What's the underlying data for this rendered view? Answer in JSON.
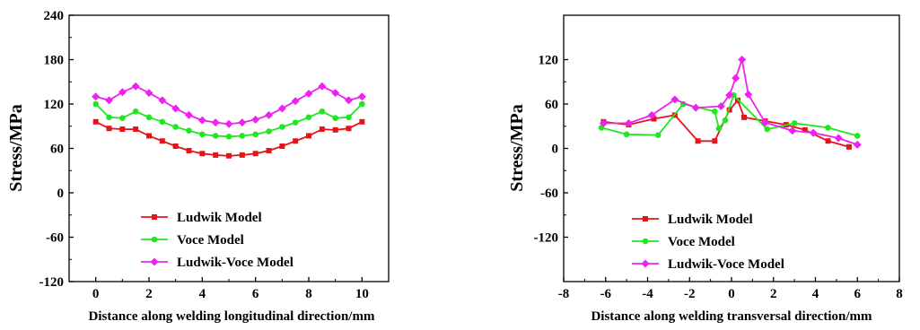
{
  "chart_data": [
    {
      "type": "line",
      "xlabel": "Distance along welding longitudinal direction/mm",
      "ylabel": "Stress/MPa",
      "xlim": [
        -1,
        11
      ],
      "ylim": [
        -120,
        240
      ],
      "xticks": [
        0,
        2,
        4,
        6,
        8,
        10
      ],
      "yticks": [
        -120,
        -60,
        0,
        60,
        120,
        180,
        240
      ],
      "grid": false,
      "legend_position": "bottom-center",
      "series": [
        {
          "name": "Ludwik Model",
          "color": "#e8131a",
          "marker": "square",
          "x": [
            0,
            0.5,
            1,
            1.5,
            2,
            2.5,
            3,
            3.5,
            4,
            4.5,
            5,
            5.5,
            6,
            6.5,
            7,
            7.5,
            8,
            8.5,
            9,
            9.5,
            10
          ],
          "y": [
            96,
            87,
            86,
            86,
            77,
            70,
            63,
            57,
            53,
            51,
            50,
            51,
            53,
            57,
            63,
            70,
            77,
            86,
            85,
            87,
            96
          ]
        },
        {
          "name": "Voce Model",
          "color": "#22e622",
          "marker": "circle",
          "x": [
            0,
            0.5,
            1,
            1.5,
            2,
            2.5,
            3,
            3.5,
            4,
            4.5,
            5,
            5.5,
            6,
            6.5,
            7,
            7.5,
            8,
            8.5,
            9,
            9.5,
            10
          ],
          "y": [
            120,
            102,
            101,
            110,
            102,
            96,
            89,
            84,
            79,
            77,
            76,
            77,
            79,
            83,
            89,
            95,
            102,
            110,
            101,
            102,
            120
          ]
        },
        {
          "name": "Ludwik-Voce Model",
          "color": "#ee22ee",
          "marker": "diamond",
          "x": [
            0,
            0.5,
            1,
            1.5,
            2,
            2.5,
            3,
            3.5,
            4,
            4.5,
            5,
            5.5,
            6,
            6.5,
            7,
            7.5,
            8,
            8.5,
            9,
            9.5,
            10
          ],
          "y": [
            130,
            125,
            136,
            144,
            135,
            125,
            114,
            105,
            98,
            95,
            93,
            95,
            99,
            105,
            114,
            124,
            134,
            144,
            135,
            125,
            130
          ]
        }
      ]
    },
    {
      "type": "line",
      "xlabel": "Distance along welding transversal direction/mm",
      "ylabel": "Stress/MPa",
      "xlim": [
        -8,
        8
      ],
      "ylim": [
        -180,
        180
      ],
      "xticks": [
        -8,
        -6,
        -4,
        -2,
        0,
        2,
        4,
        6,
        8
      ],
      "yticks": [
        -120,
        -60,
        0,
        60,
        120
      ],
      "grid": false,
      "legend_position": "bottom-center",
      "series": [
        {
          "name": "Ludwik Model",
          "color": "#e8131a",
          "marker": "square",
          "x": [
            -6.1,
            -4.9,
            -3.7,
            -2.7,
            -1.6,
            -0.8,
            -0.1,
            0.3,
            0.6,
            1.6,
            2.6,
            3.5,
            4.6,
            5.6
          ],
          "y": [
            36,
            32,
            40,
            45,
            10,
            10,
            52,
            65,
            42,
            37,
            32,
            25,
            10,
            2
          ]
        },
        {
          "name": "Voce Model",
          "color": "#22e622",
          "marker": "circle",
          "x": [
            -6.2,
            -5.0,
            -3.5,
            -2.3,
            -0.8,
            -0.6,
            -0.3,
            0.1,
            1.7,
            3.0,
            4.6,
            6.0
          ],
          "y": [
            28,
            19,
            18,
            60,
            50,
            27,
            38,
            72,
            26,
            34,
            28,
            17
          ]
        },
        {
          "name": "Ludwik-Voce Model",
          "color": "#ee22ee",
          "marker": "diamond",
          "x": [
            -6.1,
            -4.9,
            -3.8,
            -2.7,
            -1.7,
            -0.5,
            -0.1,
            0.2,
            0.5,
            0.8,
            1.6,
            2.9,
            3.9,
            5.1,
            6.0
          ],
          "y": [
            34,
            34,
            45,
            66,
            55,
            57,
            72,
            95,
            120,
            73,
            35,
            24,
            21,
            14,
            5
          ]
        }
      ]
    }
  ]
}
